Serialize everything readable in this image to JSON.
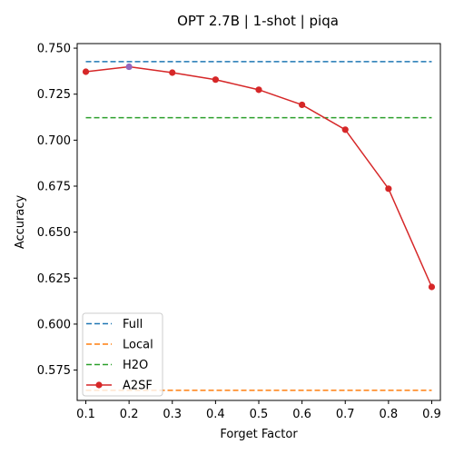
{
  "chart_data": {
    "type": "line",
    "title": "OPT 2.7B | 1-shot | piqa",
    "xlabel": "Forget Factor",
    "ylabel": "Accuracy",
    "x": [
      0.1,
      0.2,
      0.3,
      0.4,
      0.5,
      0.6,
      0.7,
      0.8,
      0.9
    ],
    "x_tick_labels": [
      "0.1",
      "0.2",
      "0.3",
      "0.4",
      "0.5",
      "0.6",
      "0.7",
      "0.8",
      "0.9"
    ],
    "xlim": [
      0.08,
      0.92
    ],
    "ylim": [
      0.5585,
      0.7525
    ],
    "y_ticks": [
      0.575,
      0.6,
      0.625,
      0.65,
      0.675,
      0.7,
      0.725,
      0.75
    ],
    "y_tick_labels": [
      "0.575",
      "0.600",
      "0.625",
      "0.650",
      "0.675",
      "0.700",
      "0.725",
      "0.750"
    ],
    "grid": false,
    "legend_position": "lower-left",
    "series": [
      {
        "name": "Full",
        "style": "dashed",
        "color": "#1f77b4",
        "values": [
          0.7427,
          0.7427,
          0.7427,
          0.7427,
          0.7427,
          0.7427,
          0.7427,
          0.7427,
          0.7427
        ]
      },
      {
        "name": "Local",
        "style": "dashed",
        "color": "#ff7f0e",
        "values": [
          0.564,
          0.564,
          0.564,
          0.564,
          0.564,
          0.564,
          0.564,
          0.564,
          0.564
        ]
      },
      {
        "name": "H2O",
        "style": "dashed",
        "color": "#2ca02c",
        "values": [
          0.7122,
          0.7122,
          0.7122,
          0.7122,
          0.7122,
          0.7122,
          0.7122,
          0.7122,
          0.7122
        ]
      },
      {
        "name": "A2SF",
        "style": "solid-marker",
        "color": "#d62728",
        "values": [
          0.7372,
          0.7399,
          0.7367,
          0.7329,
          0.7274,
          0.7192,
          0.7057,
          0.6736,
          0.6202
        ],
        "highlight_index": 1,
        "highlight_color": "#9467bd"
      }
    ]
  }
}
